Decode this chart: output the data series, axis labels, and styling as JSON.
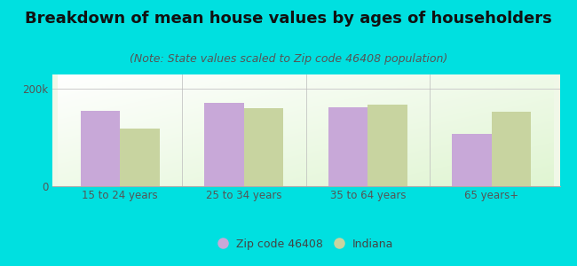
{
  "title": "Breakdown of mean house values by ages of householders",
  "subtitle": "(Note: State values scaled to Zip code 46408 population)",
  "categories": [
    "15 to 24 years",
    "25 to 34 years",
    "35 to 64 years",
    "65 years+"
  ],
  "zip_values": [
    155000,
    172000,
    163000,
    108000
  ],
  "state_values": [
    118000,
    160000,
    168000,
    153000
  ],
  "zip_color": "#c8a8d8",
  "state_color": "#c8d4a0",
  "background_outer": "#00e0e0",
  "ylim": [
    0,
    230000
  ],
  "legend_zip": "Zip code 46408",
  "legend_state": "Indiana",
  "bar_width": 0.32,
  "title_fontsize": 13,
  "subtitle_fontsize": 9,
  "axis_fontsize": 8.5,
  "legend_fontsize": 9
}
